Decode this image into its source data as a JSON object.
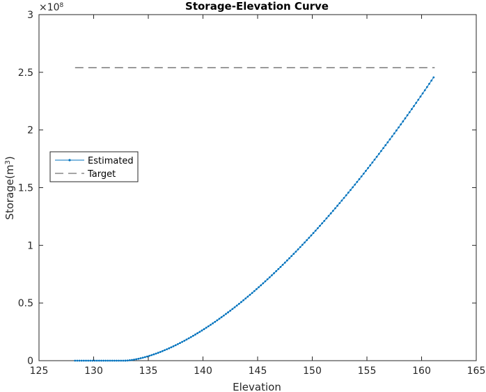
{
  "chart_data": {
    "type": "line",
    "title": "Storage-Elevation Curve",
    "xlabel": "Elevation",
    "ylabel": "Storage(m^3)",
    "ylabel_main": "Storage(m",
    "ylabel_sup": "3",
    "ylabel_close": ")",
    "y_exponent_base": "×10",
    "y_exponent_power": "8",
    "xlim": [
      125,
      165
    ],
    "ylim": [
      0,
      300000000
    ],
    "x_ticks": [
      125,
      130,
      135,
      140,
      145,
      150,
      155,
      160,
      165
    ],
    "x_tick_labels": [
      "125",
      "130",
      "135",
      "140",
      "145",
      "150",
      "155",
      "160",
      "165"
    ],
    "y_ticks": [
      0,
      50000000,
      100000000,
      150000000,
      200000000,
      250000000,
      300000000
    ],
    "y_tick_labels": [
      "0",
      "0.5",
      "1",
      "1.5",
      "2",
      "2.5",
      "3"
    ],
    "grid": false,
    "legend_position": "left",
    "series": [
      {
        "name": "Estimated",
        "style": "solid line with dot markers",
        "color": "#0072bd",
        "x_start": 128.3,
        "x_end": 161.2,
        "x_step": 0.2,
        "x_rise": 132.8,
        "y_end": 247000000,
        "curve_exponent": 1.62
      },
      {
        "name": "Target",
        "style": "dashed",
        "color": "#4d4d4d",
        "x": [
          128.3,
          161.2
        ],
        "y": [
          254000000,
          254000000
        ]
      }
    ]
  }
}
